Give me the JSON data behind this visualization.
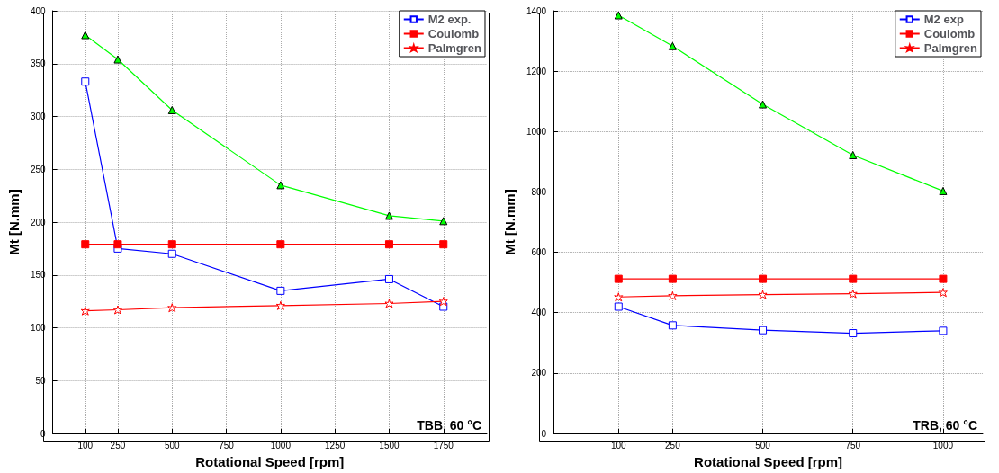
{
  "chart_data": [
    {
      "type": "line",
      "xlabel": "Rotational Speed [rpm]",
      "ylabel": "Mt [N.mm]",
      "x": [
        100,
        250,
        500,
        1000,
        1500,
        1750
      ],
      "xlim": [
        -50,
        1950
      ],
      "xticks": [
        100,
        250,
        500,
        750,
        1000,
        1250,
        1500,
        1750
      ],
      "ylim": [
        0,
        400
      ],
      "yticks": [
        0,
        50,
        100,
        150,
        200,
        250,
        300,
        350,
        400
      ],
      "grid": true,
      "legend": "top right",
      "line_style": "solid",
      "annotations": [
        "TBB, 60 °C"
      ],
      "series": [
        {
          "name": "M2 exp.",
          "color": "#0000ff",
          "marker": "square",
          "values": [
            333,
            175,
            170,
            135,
            146,
            120
          ]
        },
        {
          "name": "Coulomb",
          "color": "#ff0000",
          "marker": "square",
          "values": [
            179,
            179,
            179,
            179,
            179,
            179
          ]
        },
        {
          "name": "Palmgren",
          "color": "#ff0000",
          "marker": "star",
          "values": [
            116,
            117,
            119,
            121,
            123,
            125
          ]
        },
        {
          "color": "#00ff00",
          "marker": "triangle",
          "values": [
            377,
            354,
            306,
            235,
            206,
            201
          ]
        }
      ]
    },
    {
      "type": "line",
      "xlabel": "Rotational Speed [rpm]",
      "ylabel": "Mt [N.mm]",
      "x": [
        100,
        250,
        500,
        750,
        1000
      ],
      "xlim": [
        -80,
        1110
      ],
      "xticks": [
        100,
        250,
        500,
        750,
        1000
      ],
      "ylim": [
        0,
        1400
      ],
      "yticks": [
        0,
        200,
        400,
        600,
        800,
        1000,
        1200,
        1400
      ],
      "grid": true,
      "legend": "top right",
      "line_style": "solid",
      "annotations": [
        "TRB, 60 °C"
      ],
      "series": [
        {
          "name": "M2 exp",
          "color": "#0000ff",
          "marker": "square",
          "values": [
            420,
            358,
            342,
            332,
            340
          ]
        },
        {
          "name": "Coulomb",
          "color": "#ff0000",
          "marker": "square",
          "values": [
            512,
            512,
            512,
            512,
            512
          ]
        },
        {
          "name": "Palmgren",
          "color": "#ff0000",
          "marker": "star",
          "values": [
            452,
            456,
            460,
            463,
            467
          ]
        },
        {
          "color": "#00ff00",
          "marker": "triangle",
          "values": [
            1385,
            1283,
            1090,
            922,
            803
          ]
        }
      ]
    }
  ]
}
